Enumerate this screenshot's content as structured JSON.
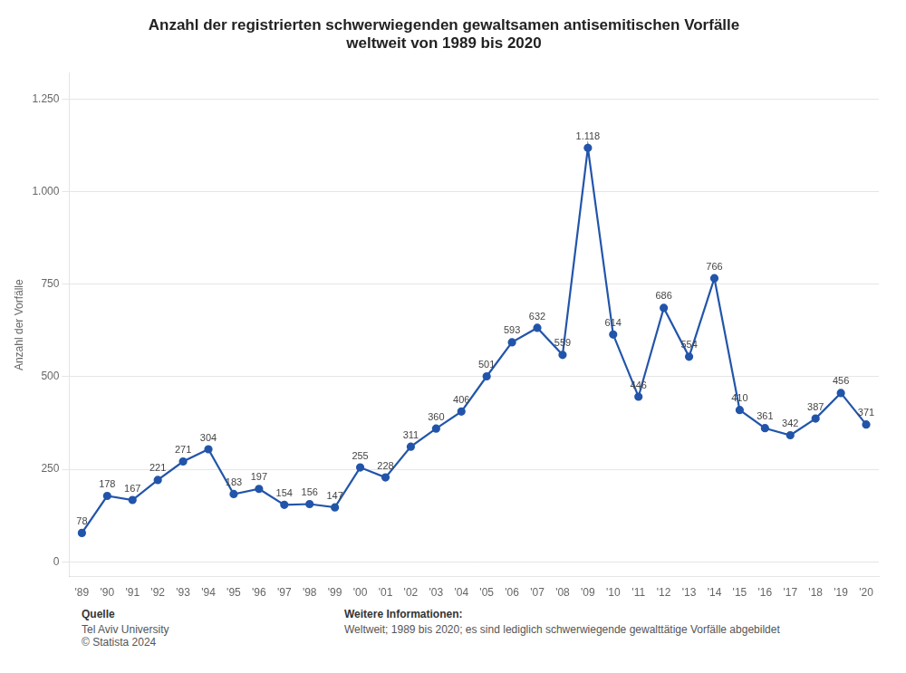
{
  "chart_data": {
    "type": "line",
    "title": "Anzahl der registrierten schwerwiegenden gewaltsamen antisemitischen Vorfälle\nweltweit von 1989 bis 2020",
    "categories": [
      "'89",
      "'90",
      "'91",
      "'92",
      "'93",
      "'94",
      "'95",
      "'96",
      "'97",
      "'98",
      "'99",
      "'00",
      "'01",
      "'02",
      "'03",
      "'04",
      "'05",
      "'06",
      "'07",
      "'08",
      "'09",
      "'10",
      "'11",
      "'12",
      "'13",
      "'14",
      "'15",
      "'16",
      "'17",
      "'18",
      "'19",
      "'20"
    ],
    "values": [
      78,
      178,
      167,
      221,
      271,
      304,
      183,
      197,
      154,
      156,
      147,
      255,
      228,
      311,
      360,
      406,
      501,
      593,
      632,
      559,
      1118,
      614,
      446,
      686,
      554,
      766,
      410,
      361,
      342,
      387,
      456,
      371
    ],
    "value_labels": [
      "78",
      "178",
      "167",
      "221",
      "271",
      "304",
      "183",
      "197",
      "154",
      "156",
      "147",
      "255",
      "228",
      "311",
      "360",
      "406",
      "501",
      "593",
      "632",
      "559",
      "1.118",
      "614",
      "446",
      "686",
      "554",
      "766",
      "410",
      "361",
      "342",
      "387",
      "456",
      "371"
    ],
    "data_labels": true,
    "color": "#2255aa",
    "marker": "circle",
    "y_label": "Anzahl der Vorfälle",
    "ylim": [
      -40,
      1320
    ],
    "yticks": [
      0,
      250,
      500,
      750,
      {
        "value": 1000,
        "label": "1.000"
      },
      {
        "value": 1250,
        "label": "1.250"
      }
    ],
    "grid": true,
    "annotations": [
      {
        "heading": "Quelle",
        "text": "Tel Aviv University\n© Statista 2024"
      },
      {
        "heading": "Weitere Informationen:",
        "text": "Weltweit; 1989 bis 2020; es sind lediglich schwerwiegende gewalttätige Vorfälle abgebildet"
      }
    ]
  }
}
